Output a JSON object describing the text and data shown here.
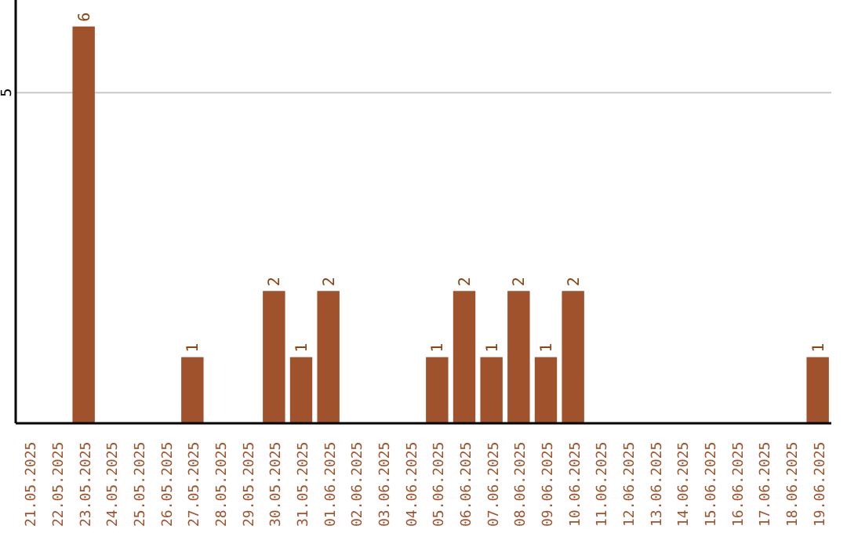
{
  "chart_data": {
    "type": "bar",
    "categories": [
      "21.05.2025",
      "22.05.2025",
      "23.05.2025",
      "24.05.2025",
      "25.05.2025",
      "26.05.2025",
      "27.05.2025",
      "28.05.2025",
      "29.05.2025",
      "30.05.2025",
      "31.05.2025",
      "01.06.2025",
      "02.06.2025",
      "03.06.2025",
      "04.06.2025",
      "05.06.2025",
      "06.06.2025",
      "07.06.2025",
      "08.06.2025",
      "09.06.2025",
      "10.06.2025",
      "11.06.2025",
      "12.06.2025",
      "13.06.2025",
      "14.06.2025",
      "15.06.2025",
      "16.06.2025",
      "17.06.2025",
      "18.06.2025",
      "19.06.2025"
    ],
    "values": [
      0,
      0,
      6,
      0,
      0,
      0,
      1,
      0,
      0,
      2,
      1,
      2,
      0,
      0,
      0,
      1,
      2,
      1,
      2,
      1,
      2,
      0,
      0,
      0,
      0,
      0,
      0,
      0,
      0,
      1
    ],
    "value_labels": [
      null,
      null,
      "6",
      null,
      null,
      null,
      "1",
      null,
      null,
      "2",
      "1",
      "2",
      null,
      null,
      null,
      "1",
      "2",
      "1",
      "2",
      "1",
      "2",
      null,
      null,
      null,
      null,
      null,
      null,
      null,
      null,
      "1"
    ],
    "color": "#a0522d",
    "ylim": [
      0,
      6.4
    ],
    "yticks": [
      5
    ],
    "grid": "y"
  }
}
